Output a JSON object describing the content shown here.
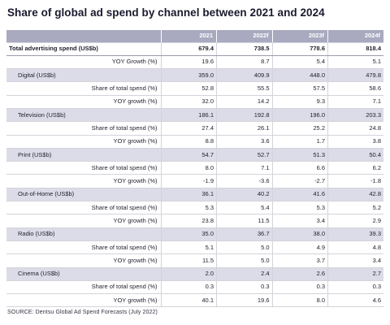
{
  "title": "Share of global ad spend by channel between 2021 and 2024",
  "source": "SOURCE: Dentsu Global Ad Spend Forecasts (July 2022)",
  "chart_data": {
    "type": "table",
    "title": "Share of global ad spend by channel between 2021 and 2024",
    "columns": [
      "",
      "2021",
      "2022f",
      "2023f",
      "2024f"
    ],
    "rows": [
      {
        "kind": "total",
        "label": "Total advertising spend (US$b)",
        "values": [
          "679.4",
          "738.5",
          "778.6",
          "818.4"
        ]
      },
      {
        "kind": "sub",
        "label": "YOY Growth (%)",
        "values": [
          "19.6",
          "8.7",
          "5.4",
          "5.1"
        ]
      },
      {
        "kind": "cat",
        "label": "Digital (US$b)",
        "values": [
          "359.0",
          "409.9",
          "448.0",
          "479.8"
        ]
      },
      {
        "kind": "sub",
        "label": "Share of total spend (%)",
        "values": [
          "52.8",
          "55.5",
          "57.5",
          "58.6"
        ]
      },
      {
        "kind": "sub",
        "label": "YOY growth (%)",
        "values": [
          "32.0",
          "14.2",
          "9.3",
          "7.1"
        ]
      },
      {
        "kind": "cat",
        "label": "Television (US$b)",
        "values": [
          "186.1",
          "192.8",
          "196.0",
          "203.3"
        ]
      },
      {
        "kind": "sub",
        "label": "Share of total spend (%)",
        "values": [
          "27.4",
          "26.1",
          "25.2",
          "24.8"
        ]
      },
      {
        "kind": "sub",
        "label": "YOY growth (%)",
        "values": [
          "8.8",
          "3.6",
          "1.7",
          "3.8"
        ]
      },
      {
        "kind": "cat",
        "label": "Print (US$b)",
        "values": [
          "54.7",
          "52.7",
          "51.3",
          "50.4"
        ]
      },
      {
        "kind": "sub",
        "label": "Share of total spend (%)",
        "values": [
          "8.0",
          "7.1",
          "6.6",
          "6.2"
        ]
      },
      {
        "kind": "sub",
        "label": "YOY growth (%)",
        "values": [
          "-1.9",
          "-3.6",
          "-2.7",
          "-1.8"
        ]
      },
      {
        "kind": "cat",
        "label": "Out-of-Home (US$b)",
        "values": [
          "36.1",
          "40.2",
          "41.6",
          "42.8"
        ]
      },
      {
        "kind": "sub",
        "label": "Share of total spend (%)",
        "values": [
          "5.3",
          "5.4",
          "5.3",
          "5.2"
        ]
      },
      {
        "kind": "sub",
        "label": "YOY growth (%)",
        "values": [
          "23.8",
          "11.5",
          "3.4",
          "2.9"
        ]
      },
      {
        "kind": "cat",
        "label": "Radio (US$b)",
        "values": [
          "35.0",
          "36.7",
          "38.0",
          "39.3"
        ]
      },
      {
        "kind": "sub",
        "label": "Share of total spend (%)",
        "values": [
          "5.1",
          "5.0",
          "4.9",
          "4.8"
        ]
      },
      {
        "kind": "sub",
        "label": "YOY growth (%)",
        "values": [
          "11.5",
          "5.0",
          "3.7",
          "3.4"
        ]
      },
      {
        "kind": "cat",
        "label": "Cinema (US$b)",
        "values": [
          "2.0",
          "2.4",
          "2.6",
          "2.7"
        ]
      },
      {
        "kind": "sub",
        "label": "Share of total spend (%)",
        "values": [
          "0.3",
          "0.3",
          "0.3",
          "0.3"
        ]
      },
      {
        "kind": "sub",
        "label": "YOY growth (%)",
        "values": [
          "40.1",
          "19.6",
          "8.0",
          "4.6"
        ]
      }
    ],
    "colors": {
      "header_bg": "#a9a9c0",
      "category_bg": "#dcdce8"
    }
  }
}
